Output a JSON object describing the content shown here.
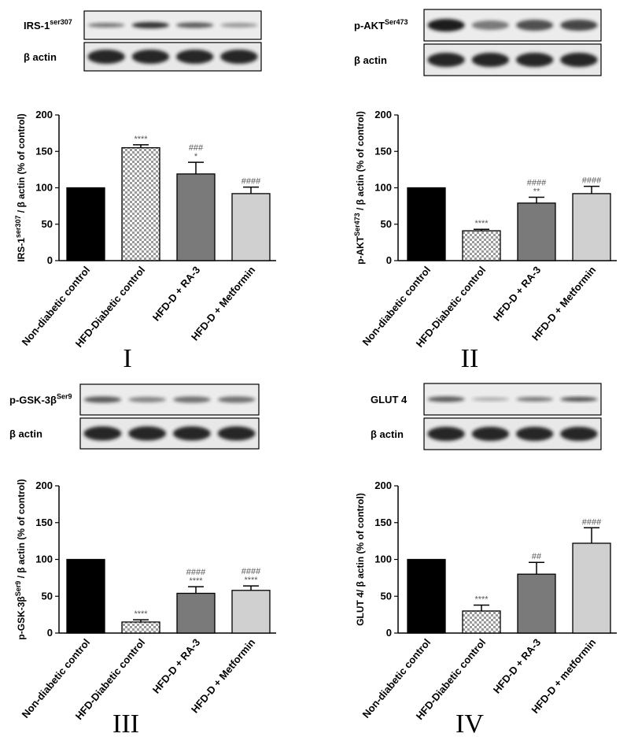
{
  "chart_data": [
    {
      "type": "bar",
      "panel_label": "I",
      "blot_labels": [
        "IRS-1",
        "β actin"
      ],
      "blot_label_sup": "ser307",
      "ylabel_parts": [
        "IRS-1",
        "ser307",
        " / β actin (% of control)"
      ],
      "categories": [
        "Non-diabetic control",
        "HFD-Diabetic control",
        "HFD-D + RA-3",
        "HFD-D + Metformin"
      ],
      "values": [
        100,
        155,
        119,
        92
      ],
      "errors": [
        0,
        4,
        16,
        9
      ],
      "annotations": [
        [],
        [
          "****"
        ],
        [
          "###",
          "*"
        ],
        [
          "####"
        ]
      ],
      "ylim": [
        0,
        200
      ],
      "yticks": [
        "0",
        "50",
        "100",
        "150",
        "200"
      ]
    },
    {
      "type": "bar",
      "panel_label": "II",
      "blot_labels": [
        "p-AKT",
        "β actin"
      ],
      "blot_label_sup": "Ser473",
      "ylabel_parts": [
        "p-AKT",
        "Ser473",
        " / β actin (% of control)"
      ],
      "categories": [
        "Non-diabetic control",
        "HFD-Diabetic control",
        "HFD-D + RA-3",
        "HFD-D + Metformin"
      ],
      "values": [
        100,
        41,
        79,
        92
      ],
      "errors": [
        0,
        2,
        8,
        10
      ],
      "annotations": [
        [],
        [
          "****"
        ],
        [
          "####",
          "**"
        ],
        [
          "####"
        ]
      ],
      "ylim": [
        0,
        200
      ],
      "yticks": [
        "0",
        "50",
        "100",
        "150",
        "200"
      ]
    },
    {
      "type": "bar",
      "panel_label": "III",
      "blot_labels": [
        "p-GSK-3β",
        "β actin"
      ],
      "blot_label_sup": "Ser9",
      "ylabel_parts": [
        "p-GSK-3β",
        "Ser9",
        " / β actin (% of control)"
      ],
      "categories": [
        "Non-diabetic control",
        "HFD-Diabetic control",
        "HFD-D + RA-3",
        "HFD-D + Metformin"
      ],
      "values": [
        100,
        15,
        54,
        58
      ],
      "errors": [
        0,
        3,
        9,
        6
      ],
      "annotations": [
        [],
        [
          "****"
        ],
        [
          "####",
          "****"
        ],
        [
          "####",
          "****"
        ]
      ],
      "ylim": [
        0,
        200
      ],
      "yticks": [
        "0",
        "50",
        "100",
        "150",
        "200"
      ]
    },
    {
      "type": "bar",
      "panel_label": "IV",
      "blot_labels": [
        "GLUT 4",
        "β actin"
      ],
      "blot_label_sup": "",
      "ylabel_parts": [
        "GLUT 4/ β actin (% of control)",
        "",
        ""
      ],
      "categories": [
        "Non-diabetic control",
        "HFD-Diabetic control",
        "HFD-D + RA-3",
        "HFD-D + metformin"
      ],
      "values": [
        100,
        30,
        80,
        122
      ],
      "errors": [
        0,
        8,
        16,
        21
      ],
      "annotations": [
        [],
        [
          "****"
        ],
        [
          "##"
        ],
        [
          "####"
        ]
      ],
      "ylim": [
        0,
        200
      ],
      "yticks": [
        "0",
        "50",
        "100",
        "150",
        "200"
      ]
    }
  ],
  "bar_fills": [
    "#000000",
    "pattern-check",
    "#7a7a7a",
    "#d0d0d0"
  ],
  "blot_band_color": "#1a1a1a"
}
